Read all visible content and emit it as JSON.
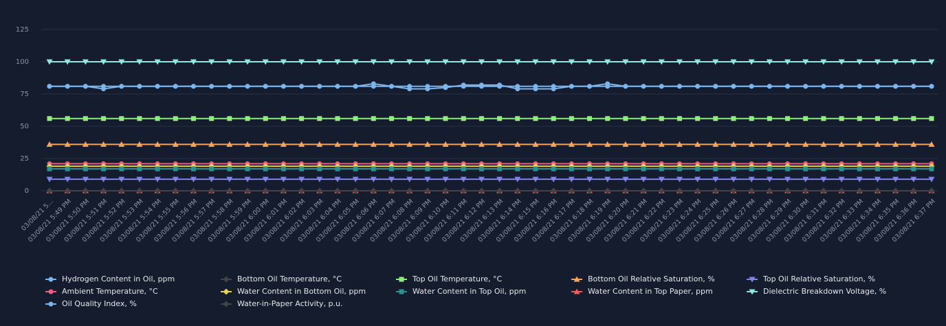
{
  "chart_data": {
    "type": "line",
    "categories": [
      "03/08/21 5...",
      "03/08/21 5:49 PM",
      "03/08/21 5:50 PM",
      "03/08/21 5:51 PM",
      "03/08/21 5:52 PM",
      "03/08/21 5:53 PM",
      "03/08/21 5:54 PM",
      "03/08/21 5:55 PM",
      "03/08/21 5:56 PM",
      "03/08/21 5:57 PM",
      "03/08/21 5:58 PM",
      "03/08/21 5:59 PM",
      "03/08/21 6:00 PM",
      "03/08/21 6:01 PM",
      "03/08/21 6:02 PM",
      "03/08/21 6:03 PM",
      "03/08/21 6:04 PM",
      "03/08/21 6:05 PM",
      "03/08/21 6:06 PM",
      "03/08/21 6:07 PM",
      "03/08/21 6:08 PM",
      "03/08/21 6:09 PM",
      "03/08/21 6:10 PM",
      "03/08/21 6:11 PM",
      "03/08/21 6:12 PM",
      "03/08/21 6:13 PM",
      "03/08/21 6:14 PM",
      "03/08/21 6:15 PM",
      "03/08/21 6:16 PM",
      "03/08/21 6:17 PM",
      "03/08/21 6:18 PM",
      "03/08/21 6:19 PM",
      "03/08/21 6:20 PM",
      "03/08/21 6:21 PM",
      "03/08/21 6:22 PM",
      "03/08/21 6:23 PM",
      "03/08/21 6:24 PM",
      "03/08/21 6:25 PM",
      "03/08/21 6:26 PM",
      "03/08/21 6:27 PM",
      "03/08/21 6:28 PM",
      "03/08/21 6:29 PM",
      "03/08/21 6:30 PM",
      "03/08/21 6:31 PM",
      "03/08/21 6:32 PM",
      "03/08/21 6:33 PM",
      "03/08/21 6:34 PM",
      "03/08/21 6:35 PM",
      "03/08/21 6:36 PM",
      "03/08/21 6:37 PM"
    ],
    "ylim": [
      0,
      125
    ],
    "yticks": [
      0,
      25,
      50,
      75,
      100,
      125
    ],
    "grid": true,
    "series": [
      {
        "name": "Hydrogen Content in Oil, ppm",
        "color": "#7cb5ec",
        "marker": "circle",
        "values": [
          81,
          81,
          81,
          79,
          81,
          81,
          81,
          81,
          81,
          81,
          81,
          81,
          81,
          81,
          81,
          81,
          81,
          81,
          83,
          81,
          79,
          79,
          80,
          82,
          82,
          82,
          79,
          79,
          79,
          81,
          81,
          83,
          81,
          81,
          81,
          81,
          81,
          81,
          81,
          81,
          81,
          81,
          81,
          81,
          81,
          81,
          81,
          81,
          81,
          81
        ]
      },
      {
        "name": "Bottom Oil Temperature, °C",
        "color": "#434348",
        "marker": "diamond",
        "values": [
          19,
          19,
          19,
          19,
          19,
          19,
          19,
          19,
          19,
          19,
          19,
          19,
          19,
          19,
          19,
          19,
          19,
          19,
          19,
          19,
          19,
          19,
          19,
          19,
          19,
          19,
          19,
          19,
          19,
          19,
          19,
          19,
          19,
          19,
          19,
          19,
          19,
          19,
          19,
          19,
          19,
          19,
          19,
          19,
          19,
          19,
          19,
          19,
          19,
          19
        ]
      },
      {
        "name": "Top Oil Temperature, °C",
        "color": "#90ed7d",
        "marker": "square",
        "values": [
          56,
          56,
          56,
          56,
          56,
          56,
          56,
          56,
          56,
          56,
          56,
          56,
          56,
          56,
          56,
          56,
          56,
          56,
          56,
          56,
          56,
          56,
          56,
          56,
          56,
          56,
          56,
          56,
          56,
          56,
          56,
          56,
          56,
          56,
          56,
          56,
          56,
          56,
          56,
          56,
          56,
          56,
          56,
          56,
          56,
          56,
          56,
          56,
          56,
          56
        ]
      },
      {
        "name": "Bottom Oil Relative Saturation, %",
        "color": "#f7a35c",
        "marker": "triangle",
        "values": [
          36,
          36,
          36,
          36,
          36,
          36,
          36,
          36,
          36,
          36,
          36,
          36,
          36,
          36,
          36,
          36,
          36,
          36,
          36,
          36,
          36,
          36,
          36,
          36,
          36,
          36,
          36,
          36,
          36,
          36,
          36,
          36,
          36,
          36,
          36,
          36,
          36,
          36,
          36,
          36,
          36,
          36,
          36,
          36,
          36,
          36,
          36,
          36,
          36,
          36
        ]
      },
      {
        "name": "Top Oil Relative Saturation, %",
        "color": "#8085e9",
        "marker": "triangle-down",
        "values": [
          9,
          9,
          9,
          9,
          9,
          9,
          9,
          9,
          9,
          9,
          9,
          9,
          9,
          9,
          9,
          9,
          9,
          9,
          9,
          9,
          9,
          9,
          9,
          9,
          9,
          9,
          9,
          9,
          9,
          9,
          9,
          9,
          9,
          9,
          9,
          9,
          9,
          9,
          9,
          9,
          9,
          9,
          9,
          9,
          9,
          9,
          9,
          9,
          9,
          9
        ]
      },
      {
        "name": "Ambient Temperature, °C",
        "color": "#f15c80",
        "marker": "circle",
        "values": [
          21,
          21,
          21,
          21,
          21,
          21,
          21,
          21,
          21,
          21,
          21,
          21,
          21,
          21,
          21,
          21,
          21,
          21,
          21,
          21,
          21,
          21,
          21,
          21,
          21,
          21,
          21,
          21,
          21,
          21,
          21,
          21,
          21,
          21,
          21,
          21,
          21,
          21,
          21,
          21,
          21,
          21,
          21,
          21,
          21,
          21,
          21,
          21,
          21,
          21
        ]
      },
      {
        "name": "Water Content in Bottom Oil, ppm",
        "color": "#e4d354",
        "marker": "diamond",
        "values": [
          19,
          19,
          19,
          19,
          19,
          19,
          19,
          19,
          19,
          19,
          19,
          19,
          19,
          19,
          19,
          19,
          19,
          19,
          19,
          19,
          19,
          19,
          19,
          19,
          19,
          19,
          19,
          19,
          19,
          19,
          19,
          19,
          19,
          19,
          19,
          19,
          19,
          19,
          19,
          19,
          19,
          19,
          19,
          19,
          19,
          19,
          19,
          19,
          19,
          19
        ]
      },
      {
        "name": "Water Content in Top Oil, ppm",
        "color": "#2b908f",
        "marker": "square",
        "values": [
          17,
          17,
          17,
          17,
          17,
          17,
          17,
          17,
          17,
          17,
          17,
          17,
          17,
          17,
          17,
          17,
          17,
          17,
          17,
          17,
          17,
          17,
          17,
          17,
          17,
          17,
          17,
          17,
          17,
          17,
          17,
          17,
          17,
          17,
          17,
          17,
          17,
          17,
          17,
          17,
          17,
          17,
          17,
          17,
          17,
          17,
          17,
          17,
          17,
          17
        ]
      },
      {
        "name": "Water Content in Top Paper, ppm",
        "color": "#f45b5b",
        "marker": "triangle",
        "values": [
          0,
          0,
          0,
          0,
          0,
          0,
          0,
          0,
          0,
          0,
          0,
          0,
          0,
          0,
          0,
          0,
          0,
          0,
          0,
          0,
          0,
          0,
          0,
          0,
          0,
          0,
          0,
          0,
          0,
          0,
          0,
          0,
          0,
          0,
          0,
          0,
          0,
          0,
          0,
          0,
          0,
          0,
          0,
          0,
          0,
          0,
          0,
          0,
          0,
          0
        ]
      },
      {
        "name": "Dielectric Breakdown Voltage, %",
        "color": "#91e8e1",
        "marker": "triangle-down",
        "values": [
          100,
          100,
          100,
          100,
          100,
          100,
          100,
          100,
          100,
          100,
          100,
          100,
          100,
          100,
          100,
          100,
          100,
          100,
          100,
          100,
          100,
          100,
          100,
          100,
          100,
          100,
          100,
          100,
          100,
          100,
          100,
          100,
          100,
          100,
          100,
          100,
          100,
          100,
          100,
          100,
          100,
          100,
          100,
          100,
          100,
          100,
          100,
          100,
          100,
          100
        ]
      },
      {
        "name": "Oil Quality Index, %",
        "color": "#7cb5ec",
        "marker": "circle",
        "values": [
          81,
          81,
          81,
          81,
          81,
          81,
          81,
          81,
          81,
          81,
          81,
          81,
          81,
          81,
          81,
          81,
          81,
          81,
          81,
          81,
          81,
          81,
          81,
          81,
          81,
          81,
          81,
          81,
          81,
          81,
          81,
          81,
          81,
          81,
          81,
          81,
          81,
          81,
          81,
          81,
          81,
          81,
          81,
          81,
          81,
          81,
          81,
          81,
          81,
          81
        ]
      },
      {
        "name": "Water-in-Paper Activity, p.u.",
        "color": "#434348",
        "marker": "diamond",
        "values": [
          0,
          0,
          0,
          0,
          0,
          0,
          0,
          0,
          0,
          0,
          0,
          0,
          0,
          0,
          0,
          0,
          0,
          0,
          0,
          0,
          0,
          0,
          0,
          0,
          0,
          0,
          0,
          0,
          0,
          0,
          0,
          0,
          0,
          0,
          0,
          0,
          0,
          0,
          0,
          0,
          0,
          0,
          0,
          0,
          0,
          0,
          0,
          0,
          0,
          0
        ]
      }
    ]
  }
}
